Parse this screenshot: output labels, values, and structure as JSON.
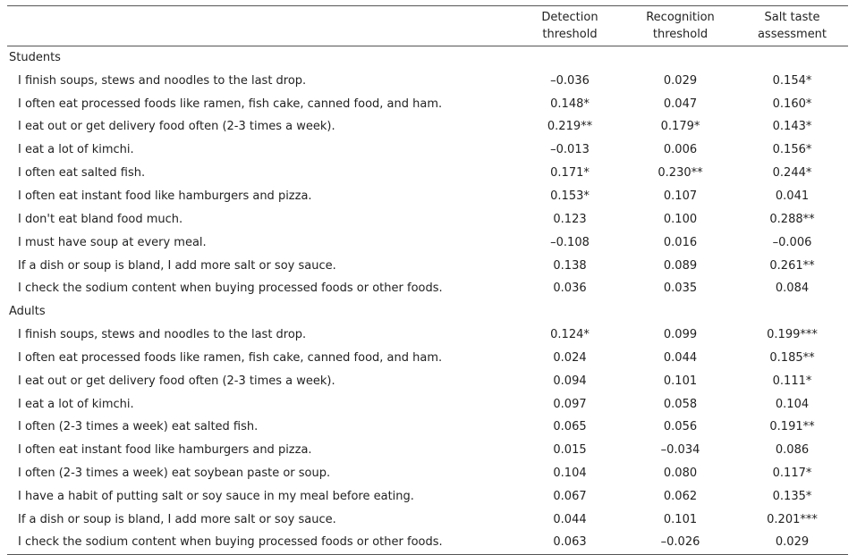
{
  "table": {
    "headers": [
      "",
      "Detection\nthreshold",
      "Recognition\nthreshold",
      "Salt taste\nassessment"
    ],
    "groups": [
      {
        "label": "Students",
        "rows": [
          {
            "item": "I finish soups, stews and noodles to the last drop.",
            "values": [
              "–0.036",
              "0.029",
              "0.154*"
            ]
          },
          {
            "item": "I often eat processed foods like ramen, fish cake, canned food, and ham.",
            "values": [
              "0.148*",
              "0.047",
              "0.160*"
            ]
          },
          {
            "item": "I eat out or get delivery food often (2-3 times a week).",
            "values": [
              "0.219**",
              "0.179*",
              "0.143*"
            ]
          },
          {
            "item": "I eat a lot of kimchi.",
            "values": [
              "–0.013",
              "0.006",
              "0.156*"
            ]
          },
          {
            "item": "I often eat salted fish.",
            "values": [
              "0.171*",
              "0.230**",
              "0.244*"
            ]
          },
          {
            "item": "I often eat instant food like hamburgers and pizza.",
            "values": [
              "0.153*",
              "0.107",
              "0.041"
            ]
          },
          {
            "item": "I don't eat bland food much.",
            "values": [
              "0.123",
              "0.100",
              "0.288**"
            ]
          },
          {
            "item": "I must have soup at every meal.",
            "values": [
              "–0.108",
              "0.016",
              "–0.006"
            ]
          },
          {
            "item": "If a dish or soup is bland, I add more salt or soy sauce.",
            "values": [
              "0.138",
              "0.089",
              "0.261**"
            ]
          },
          {
            "item": "I check the sodium content when buying processed foods or other foods.",
            "values": [
              "0.036",
              "0.035",
              "0.084"
            ]
          }
        ]
      },
      {
        "label": "Adults",
        "rows": [
          {
            "item": "I finish soups, stews and noodles to the last drop.",
            "values": [
              "0.124*",
              "0.099",
              "0.199***"
            ]
          },
          {
            "item": "I often eat processed foods like ramen, fish cake, canned food, and ham.",
            "values": [
              "0.024",
              "0.044",
              "0.185**"
            ]
          },
          {
            "item": "I eat out or get delivery food often (2-3 times a week).",
            "values": [
              "0.094",
              "0.101",
              "0.111*"
            ]
          },
          {
            "item": "I eat a lot of kimchi.",
            "values": [
              "0.097",
              "0.058",
              "0.104"
            ]
          },
          {
            "item": "I often (2-3 times a week) eat salted fish.",
            "values": [
              "0.065",
              "0.056",
              "0.191**"
            ]
          },
          {
            "item": "I often eat instant food like hamburgers and pizza.",
            "values": [
              "0.015",
              "–0.034",
              "0.086"
            ]
          },
          {
            "item": "I often (2-3 times a week) eat soybean paste or soup.",
            "values": [
              "0.104",
              "0.080",
              "0.117*"
            ]
          },
          {
            "item": "I have a habit of putting salt or soy sauce in my meal before eating.",
            "values": [
              "0.067",
              "0.062",
              "0.135*"
            ]
          },
          {
            "item": "If a dish or soup is bland, I add more salt or soy sauce.",
            "values": [
              "0.044",
              "0.101",
              "0.201***"
            ]
          },
          {
            "item": "I check the sodium content when buying processed foods or other foods.",
            "values": [
              "0.063",
              "–0.026",
              "0.029"
            ]
          }
        ]
      }
    ]
  }
}
